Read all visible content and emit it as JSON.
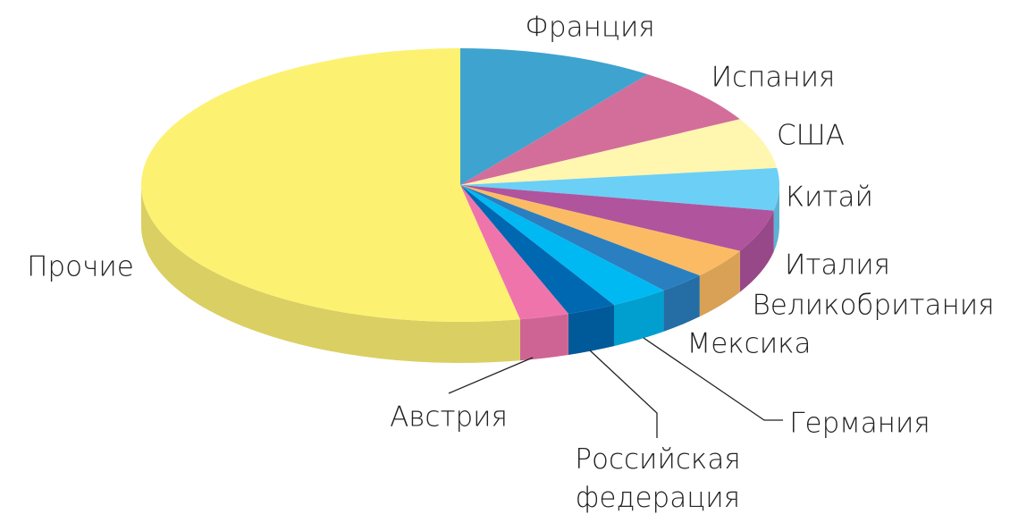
{
  "chart_data": {
    "type": "pie",
    "categories": [
      "Франция",
      "Испания",
      "США",
      "Китай",
      "Италия",
      "Великобритания",
      "Мексика",
      "Германия",
      "Российская федерация",
      "Австрия",
      "Прочие"
    ],
    "values": [
      10,
      7,
      6,
      5,
      5,
      3.5,
      2.5,
      3,
      2.5,
      2.5,
      53
    ],
    "colors": [
      "#3fa3cf",
      "#d36e9a",
      "#fff6b0",
      "#6ccff6",
      "#b0549e",
      "#fbbb64",
      "#2a7fc0",
      "#00b9f2",
      "#0067b1",
      "#f074ac",
      "#fdf172"
    ]
  }
}
